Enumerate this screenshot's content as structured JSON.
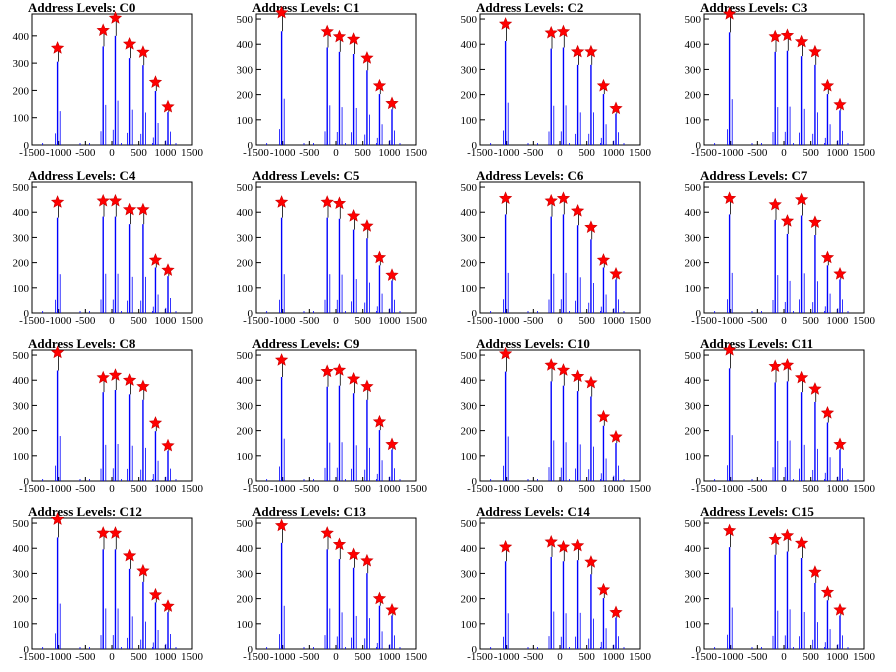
{
  "chart_data": {
    "type": "bar",
    "title_prefix": "Address Levels: ",
    "x_ticks": [
      -1500,
      -1000,
      -500,
      0,
      500,
      1000,
      1500
    ],
    "xlim": [
      -1500,
      1500
    ],
    "ylim": [
      0,
      520
    ],
    "y_ticks": [
      0,
      100,
      200,
      300,
      400,
      500
    ],
    "y_ticks_c0": [
      0,
      100,
      200,
      300,
      400
    ],
    "colors": {
      "bars": "#0000ff",
      "peaks": "#000000",
      "markers": "#ff0000"
    },
    "marker_x": [
      -1020,
      -165,
      65,
      330,
      580,
      815,
      1050
    ],
    "panels": [
      {
        "name": "C0",
        "ylim": [
          0,
          480
        ],
        "markers": [
          355,
          420,
          465,
          370,
          340,
          230,
          140
        ]
      },
      {
        "name": "C1",
        "markers": [
          525,
          450,
          430,
          420,
          345,
          235,
          165
        ]
      },
      {
        "name": "C2",
        "markers": [
          480,
          445,
          450,
          370,
          370,
          235,
          145
        ]
      },
      {
        "name": "C3",
        "markers": [
          520,
          430,
          435,
          410,
          370,
          235,
          160
        ]
      },
      {
        "name": "C4",
        "markers": [
          440,
          445,
          445,
          410,
          410,
          210,
          170
        ]
      },
      {
        "name": "C5",
        "markers": [
          440,
          440,
          435,
          385,
          345,
          220,
          150
        ]
      },
      {
        "name": "C6",
        "markers": [
          455,
          445,
          455,
          405,
          340,
          210,
          155
        ]
      },
      {
        "name": "C7",
        "markers": [
          455,
          430,
          365,
          450,
          360,
          220,
          155
        ]
      },
      {
        "name": "C8",
        "markers": [
          510,
          410,
          420,
          400,
          375,
          230,
          140
        ]
      },
      {
        "name": "C9",
        "markers": [
          480,
          435,
          440,
          405,
          375,
          235,
          145
        ]
      },
      {
        "name": "C10",
        "markers": [
          505,
          460,
          440,
          415,
          390,
          255,
          175
        ]
      },
      {
        "name": "C11",
        "markers": [
          520,
          455,
          460,
          410,
          365,
          270,
          145
        ]
      },
      {
        "name": "C12",
        "markers": [
          515,
          460,
          460,
          370,
          310,
          215,
          170
        ]
      },
      {
        "name": "C13",
        "markers": [
          490,
          460,
          415,
          375,
          350,
          200,
          155
        ]
      },
      {
        "name": "C14",
        "markers": [
          405,
          425,
          405,
          410,
          345,
          235,
          145
        ]
      },
      {
        "name": "C15",
        "markers": [
          470,
          435,
          450,
          420,
          305,
          225,
          155
        ]
      }
    ]
  }
}
